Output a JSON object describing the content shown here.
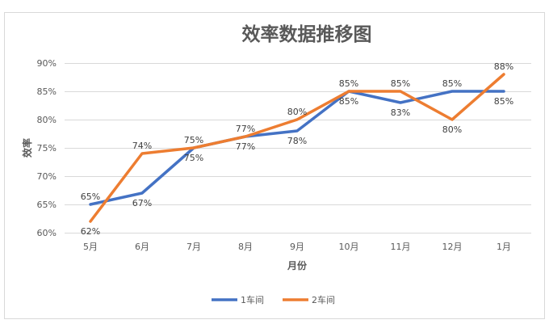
{
  "chart_data": {
    "type": "line",
    "title": "效率数据推移图",
    "xlabel": "月份",
    "ylabel": "效率",
    "categories": [
      "5月",
      "6月",
      "7月",
      "8月",
      "9月",
      "10月",
      "11月",
      "12月",
      "1月"
    ],
    "yticks": [
      "60%",
      "65%",
      "70%",
      "75%",
      "80%",
      "85%",
      "90%"
    ],
    "ylim": [
      60,
      90
    ],
    "grid": true,
    "legend_position": "bottom",
    "series": [
      {
        "name": "1车间",
        "color": "#4472C4",
        "values": [
          65,
          67,
          75,
          77,
          78,
          85,
          83,
          85,
          85
        ],
        "labels": [
          "65%",
          "67%",
          "75%",
          "77%",
          "78%",
          "85%",
          "83%",
          "85%",
          "85%"
        ]
      },
      {
        "name": "2车间",
        "color": "#ED7D31",
        "values": [
          62,
          74,
          75,
          77,
          80,
          85,
          85,
          80,
          88
        ],
        "labels": [
          "62%",
          "74%",
          "75%",
          "77%",
          "80%",
          "85%",
          "85%",
          "80%",
          "88%"
        ]
      }
    ]
  }
}
